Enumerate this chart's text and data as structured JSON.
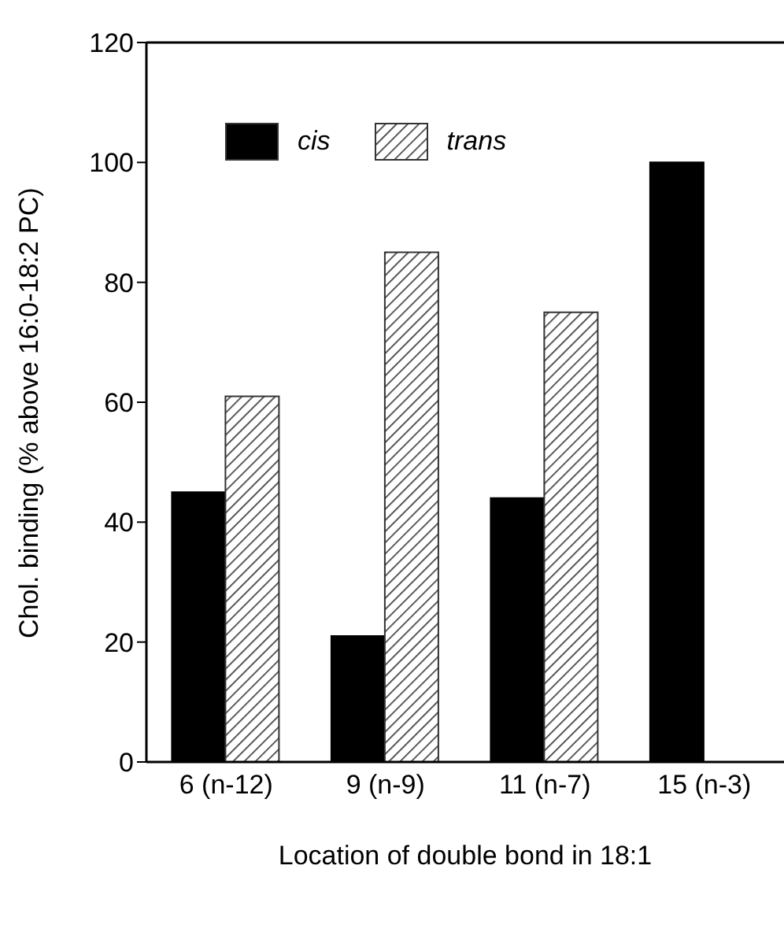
{
  "chart_data": {
    "type": "bar",
    "xlabel": "Location of double bond in 18:1",
    "ylabel": "Chol. binding (% above 16:0-18:2 PC)",
    "categories": [
      "6 (n-12)",
      "9 (n-9)",
      "11 (n-7)",
      "15 (n-3)"
    ],
    "series": [
      {
        "name": "cis",
        "color": "#000000",
        "values": [
          45,
          21,
          44,
          100
        ]
      },
      {
        "name": "trans",
        "color": "#333333",
        "values": [
          61,
          85,
          75,
          null
        ]
      }
    ],
    "ylim": [
      0,
      120
    ],
    "yticks": [
      0,
      20,
      40,
      60,
      80,
      100,
      120
    ],
    "legend": "top left",
    "grid": false
  }
}
